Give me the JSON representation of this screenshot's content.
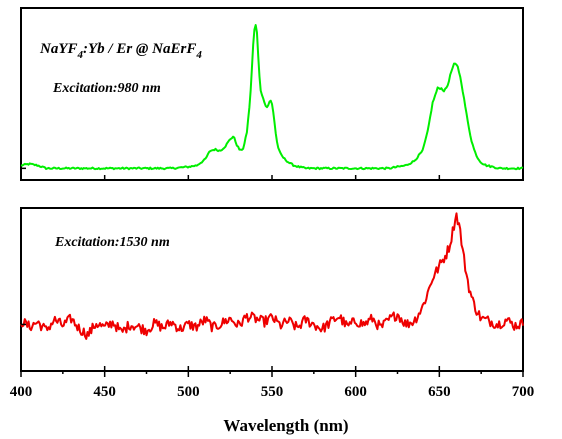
{
  "chart_data": [
    {
      "type": "line",
      "panel": "top",
      "title_parts": {
        "formula_a": "NaYF",
        "sub_a": "4",
        "rest": ":Yb / Er @ NaErF",
        "sub_b": "4"
      },
      "annotation": "Excitation:980 nm",
      "series": [
        {
          "color": "#00ee00",
          "x": [
            400,
            405,
            410,
            415,
            420,
            430,
            440,
            450,
            460,
            470,
            480,
            490,
            500,
            505,
            510,
            513,
            516,
            519,
            522,
            525,
            527,
            529,
            531,
            533,
            535,
            537,
            539,
            540,
            541,
            542,
            543,
            544,
            545,
            546,
            547,
            548,
            549,
            550,
            551,
            552,
            553,
            554,
            555,
            557,
            560,
            563,
            566,
            570,
            580,
            590,
            600,
            610,
            620,
            630,
            635,
            640,
            643,
            646,
            649,
            651,
            653,
            655,
            657,
            659,
            661,
            663,
            665,
            667,
            669,
            671,
            673,
            675,
            678,
            682,
            686,
            690,
            695,
            700
          ],
          "y": [
            0.02,
            0.03,
            0.02,
            0.0,
            0.0,
            0.0,
            0.0,
            0.0,
            0.0,
            0.0,
            0.0,
            0.0,
            0.01,
            0.02,
            0.06,
            0.12,
            0.13,
            0.12,
            0.15,
            0.2,
            0.22,
            0.16,
            0.12,
            0.14,
            0.25,
            0.48,
            0.9,
            1.0,
            0.93,
            0.72,
            0.55,
            0.5,
            0.48,
            0.43,
            0.42,
            0.44,
            0.47,
            0.44,
            0.37,
            0.26,
            0.18,
            0.13,
            0.1,
            0.07,
            0.04,
            0.02,
            0.01,
            0.0,
            0.0,
            0.0,
            0.0,
            0.0,
            0.0,
            0.02,
            0.05,
            0.12,
            0.25,
            0.45,
            0.55,
            0.55,
            0.53,
            0.57,
            0.66,
            0.72,
            0.7,
            0.6,
            0.46,
            0.32,
            0.2,
            0.12,
            0.07,
            0.04,
            0.02,
            0.01,
            0.0,
            0.0,
            0.0,
            0.0
          ]
        }
      ],
      "xlim": [
        400,
        700
      ],
      "ylim": [
        -0.08,
        1.1
      ]
    },
    {
      "type": "line",
      "panel": "bottom",
      "annotation": "Excitation:1530 nm",
      "series": [
        {
          "color": "#ee0000",
          "x": [
            400,
            405,
            410,
            415,
            420,
            425,
            430,
            435,
            440,
            445,
            450,
            455,
            460,
            465,
            470,
            475,
            480,
            485,
            490,
            495,
            500,
            505,
            510,
            515,
            520,
            525,
            530,
            535,
            540,
            545,
            550,
            555,
            560,
            565,
            570,
            575,
            580,
            585,
            590,
            595,
            600,
            605,
            610,
            615,
            620,
            625,
            630,
            635,
            640,
            643,
            646,
            648,
            650,
            652,
            654,
            656,
            658,
            660,
            662,
            664,
            666,
            668,
            670,
            672,
            675,
            680,
            685,
            690,
            695,
            700
          ],
          "y": [
            0.08,
            0.03,
            0.07,
            0.0,
            0.09,
            0.04,
            0.1,
            0.01,
            -0.04,
            0.06,
            0.02,
            0.07,
            -0.02,
            0.05,
            0.03,
            0.0,
            0.06,
            0.02,
            0.07,
            0.01,
            0.05,
            0.03,
            0.09,
            0.02,
            0.06,
            0.1,
            0.04,
            0.12,
            0.1,
            0.07,
            0.11,
            0.04,
            0.08,
            0.02,
            0.09,
            0.05,
            0.01,
            0.07,
            0.12,
            0.03,
            0.08,
            0.05,
            0.1,
            0.02,
            0.09,
            0.14,
            0.05,
            0.08,
            0.2,
            0.32,
            0.45,
            0.5,
            0.55,
            0.6,
            0.65,
            0.72,
            0.85,
            1.0,
            0.9,
            0.68,
            0.5,
            0.35,
            0.25,
            0.18,
            0.1,
            0.08,
            0.05,
            0.09,
            0.04,
            0.06
          ],
          "jitter": 0.045
        }
      ],
      "xlim": [
        400,
        700
      ],
      "ylim": [
        -0.35,
        1.05
      ]
    }
  ],
  "x_axis": {
    "ticks": [
      400,
      450,
      500,
      550,
      600,
      650,
      700
    ],
    "label": "Wavelength (nm)"
  }
}
